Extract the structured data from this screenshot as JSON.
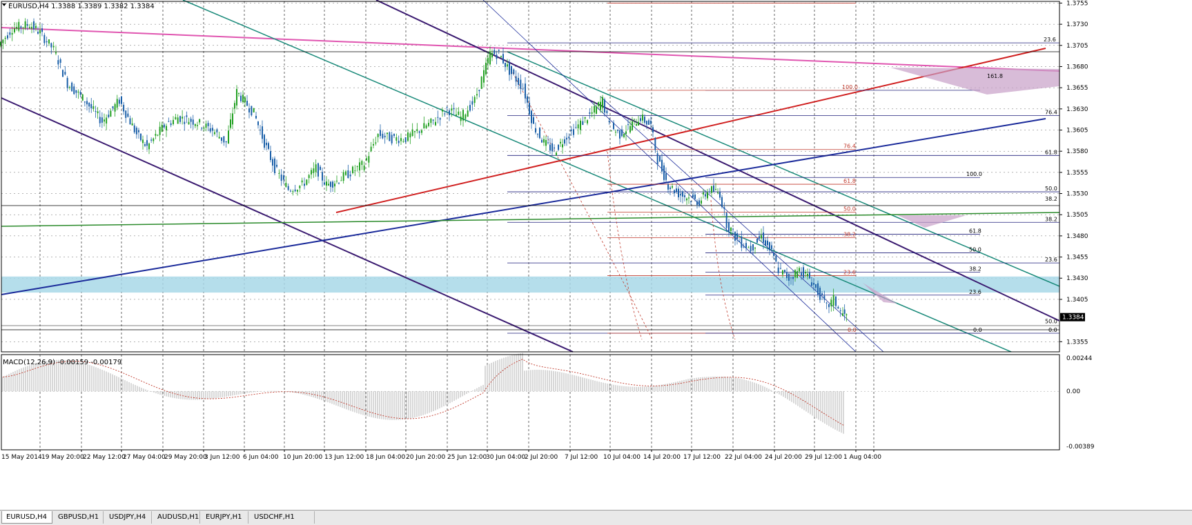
{
  "chart_data": [
    {
      "type": "candlestick",
      "symbol": "EURUSD",
      "timeframe": "H4",
      "header": "EURUSD,H4  1.3388 1.3389 1.3382 1.3384",
      "ohlc": {
        "open": 1.3388,
        "high": 1.3389,
        "low": 1.3382,
        "close": 1.3384
      },
      "current_price_label": "1.3384",
      "ylim": [
        1.3343,
        1.3757
      ],
      "y_ticks": [
        {
          "value": 1.3755,
          "label": "1.3755"
        },
        {
          "value": 1.373,
          "label": "1.3730"
        },
        {
          "value": 1.3705,
          "label": "1.3705"
        },
        {
          "value": 1.368,
          "label": "1.3680"
        },
        {
          "value": 1.3655,
          "label": "1.3655"
        },
        {
          "value": 1.363,
          "label": "1.3630"
        },
        {
          "value": 1.3605,
          "label": "1.3605"
        },
        {
          "value": 1.358,
          "label": "1.3580"
        },
        {
          "value": 1.3555,
          "label": "1.3555"
        },
        {
          "value": 1.353,
          "label": "1.3530"
        },
        {
          "value": 1.3505,
          "label": "1.3505"
        },
        {
          "value": 1.348,
          "label": "1.3480"
        },
        {
          "value": 1.3455,
          "label": "1.3455"
        },
        {
          "value": 1.343,
          "label": "1.3430"
        },
        {
          "value": 1.3405,
          "label": "1.3405"
        },
        {
          "value": 1.3355,
          "label": "1.3355"
        }
      ],
      "x_labels": [
        "15 May 2014",
        "19 May 20:00",
        "22 May 12:00",
        "27 May 04:00",
        "29 May 20:00",
        "3 Jun 12:00",
        "6 Jun 04:00",
        "10 Jun 20:00",
        "13 Jun 12:00",
        "18 Jun 04:00",
        "20 Jun 20:00",
        "25 Jun 12:00",
        "30 Jun 04:00",
        "2 Jul 20:00",
        "7 Jul 12:00",
        "10 Jul 04:00",
        "14 Jul 20:00",
        "17 Jul 12:00",
        "22 Jul 04:00",
        "24 Jul 20:00",
        "29 Jul 12:00",
        "1 Aug 04:00"
      ],
      "price_path": [
        [
          0,
          1.3705
        ],
        [
          20,
          1.3725
        ],
        [
          45,
          1.373
        ],
        [
          60,
          1.372
        ],
        [
          80,
          1.37
        ],
        [
          100,
          1.366
        ],
        [
          125,
          1.364
        ],
        [
          150,
          1.3615
        ],
        [
          175,
          1.364
        ],
        [
          200,
          1.36
        ],
        [
          215,
          1.3585
        ],
        [
          240,
          1.361
        ],
        [
          260,
          1.362
        ],
        [
          285,
          1.3615
        ],
        [
          310,
          1.3605
        ],
        [
          330,
          1.359
        ],
        [
          345,
          1.365
        ],
        [
          360,
          1.3635
        ],
        [
          370,
          1.3625
        ],
        [
          385,
          1.359
        ],
        [
          400,
          1.356
        ],
        [
          420,
          1.3535
        ],
        [
          440,
          1.354
        ],
        [
          460,
          1.356
        ],
        [
          475,
          1.354
        ],
        [
          490,
          1.3545
        ],
        [
          510,
          1.3555
        ],
        [
          530,
          1.3565
        ],
        [
          550,
          1.36
        ],
        [
          570,
          1.3595
        ],
        [
          590,
          1.3595
        ],
        [
          610,
          1.3605
        ],
        [
          630,
          1.3615
        ],
        [
          650,
          1.363
        ],
        [
          670,
          1.362
        ],
        [
          690,
          1.364
        ],
        [
          700,
          1.3665
        ],
        [
          712,
          1.3695
        ],
        [
          725,
          1.3695
        ],
        [
          740,
          1.3675
        ],
        [
          760,
          1.3655
        ],
        [
          775,
          1.361
        ],
        [
          790,
          1.359
        ],
        [
          805,
          1.358
        ],
        [
          820,
          1.3595
        ],
        [
          840,
          1.361
        ],
        [
          860,
          1.3625
        ],
        [
          875,
          1.364
        ],
        [
          885,
          1.361
        ],
        [
          900,
          1.36
        ],
        [
          915,
          1.361
        ],
        [
          930,
          1.362
        ],
        [
          945,
          1.361
        ],
        [
          955,
          1.357
        ],
        [
          970,
          1.354
        ],
        [
          985,
          1.353
        ],
        [
          1000,
          1.3525
        ],
        [
          1015,
          1.352
        ],
        [
          1030,
          1.3535
        ],
        [
          1045,
          1.353
        ],
        [
          1055,
          1.3495
        ],
        [
          1070,
          1.3475
        ],
        [
          1090,
          1.3465
        ],
        [
          1105,
          1.348
        ],
        [
          1120,
          1.346
        ],
        [
          1130,
          1.344
        ],
        [
          1145,
          1.343
        ],
        [
          1160,
          1.344
        ],
        [
          1175,
          1.343
        ],
        [
          1190,
          1.341
        ],
        [
          1200,
          1.3395
        ],
        [
          1210,
          1.3405
        ],
        [
          1220,
          1.339
        ],
        [
          1228,
          1.3384
        ]
      ],
      "fib_labels": [
        {
          "label": "23.6",
          "value": 1.3708
        },
        {
          "label": "100.0",
          "value": 1.3652
        },
        {
          "label": "161.8",
          "value": 1.3665
        },
        {
          "label": "76.4",
          "value": 1.3622
        },
        {
          "label": "76.4",
          "value": 1.3582
        },
        {
          "label": "61.8",
          "value": 1.3575
        },
        {
          "label": "100.0",
          "value": 1.3549
        },
        {
          "label": "61.8",
          "value": 1.3541
        },
        {
          "label": "50.0",
          "value": 1.3532
        },
        {
          "label": "38.2",
          "value": 1.352
        },
        {
          "label": "50.0",
          "value": 1.3508
        },
        {
          "label": "38.2",
          "value": 1.3496
        },
        {
          "label": "61.8",
          "value": 1.3482
        },
        {
          "label": "38.2",
          "value": 1.3478
        },
        {
          "label": "50.0",
          "value": 1.346
        },
        {
          "label": "23.6",
          "value": 1.3448
        },
        {
          "label": "38.2",
          "value": 1.3437
        },
        {
          "label": "23.6",
          "value": 1.3433
        },
        {
          "label": "23.6",
          "value": 1.341
        },
        {
          "label": "50.0",
          "value": 1.3375
        },
        {
          "label": "0.0",
          "value": 1.3365
        },
        {
          "label": "0.0",
          "value": 1.3365
        },
        {
          "label": "0.0",
          "value": 1.3365
        }
      ],
      "support_zone": {
        "from": 1.3413,
        "to": 1.3432,
        "color": "#a8d8e8"
      }
    },
    {
      "type": "macd",
      "header": "MACD(12,26,9) -0.00159 -0.00179",
      "ylim": [
        -0.00389,
        0.00244
      ],
      "y_ticks": [
        {
          "value": 0.00244,
          "label": "0.00244"
        },
        {
          "value": 0.0,
          "label": "0.00"
        },
        {
          "value": -0.00389,
          "label": "-0.00389"
        }
      ]
    }
  ],
  "colors": {
    "bull_candle": "#22a022",
    "bear_candle": "#1a5fa8",
    "macd_hist": "#bdbdbd",
    "macd_signal": "#c0392b",
    "fib_navy": "#1e1e7a",
    "fib_red": "#c0392b",
    "trend_pink": "#e055b0",
    "trend_purple": "#3a1a70",
    "trend_teal": "#1a8a7a",
    "trend_blue": "#1a2a9a",
    "trend_red": "#d02020",
    "trend_green": "#2a8a2a"
  },
  "tabs": [
    {
      "label": "EURUSD,H4",
      "active": true
    },
    {
      "label": "GBPUSD,H1",
      "active": false
    },
    {
      "label": "USDJPY,H4",
      "active": false
    },
    {
      "label": "AUDUSD,H1",
      "active": false
    },
    {
      "label": "EURJPY,H1",
      "active": false
    },
    {
      "label": "USDCHF,H1",
      "active": false
    }
  ]
}
